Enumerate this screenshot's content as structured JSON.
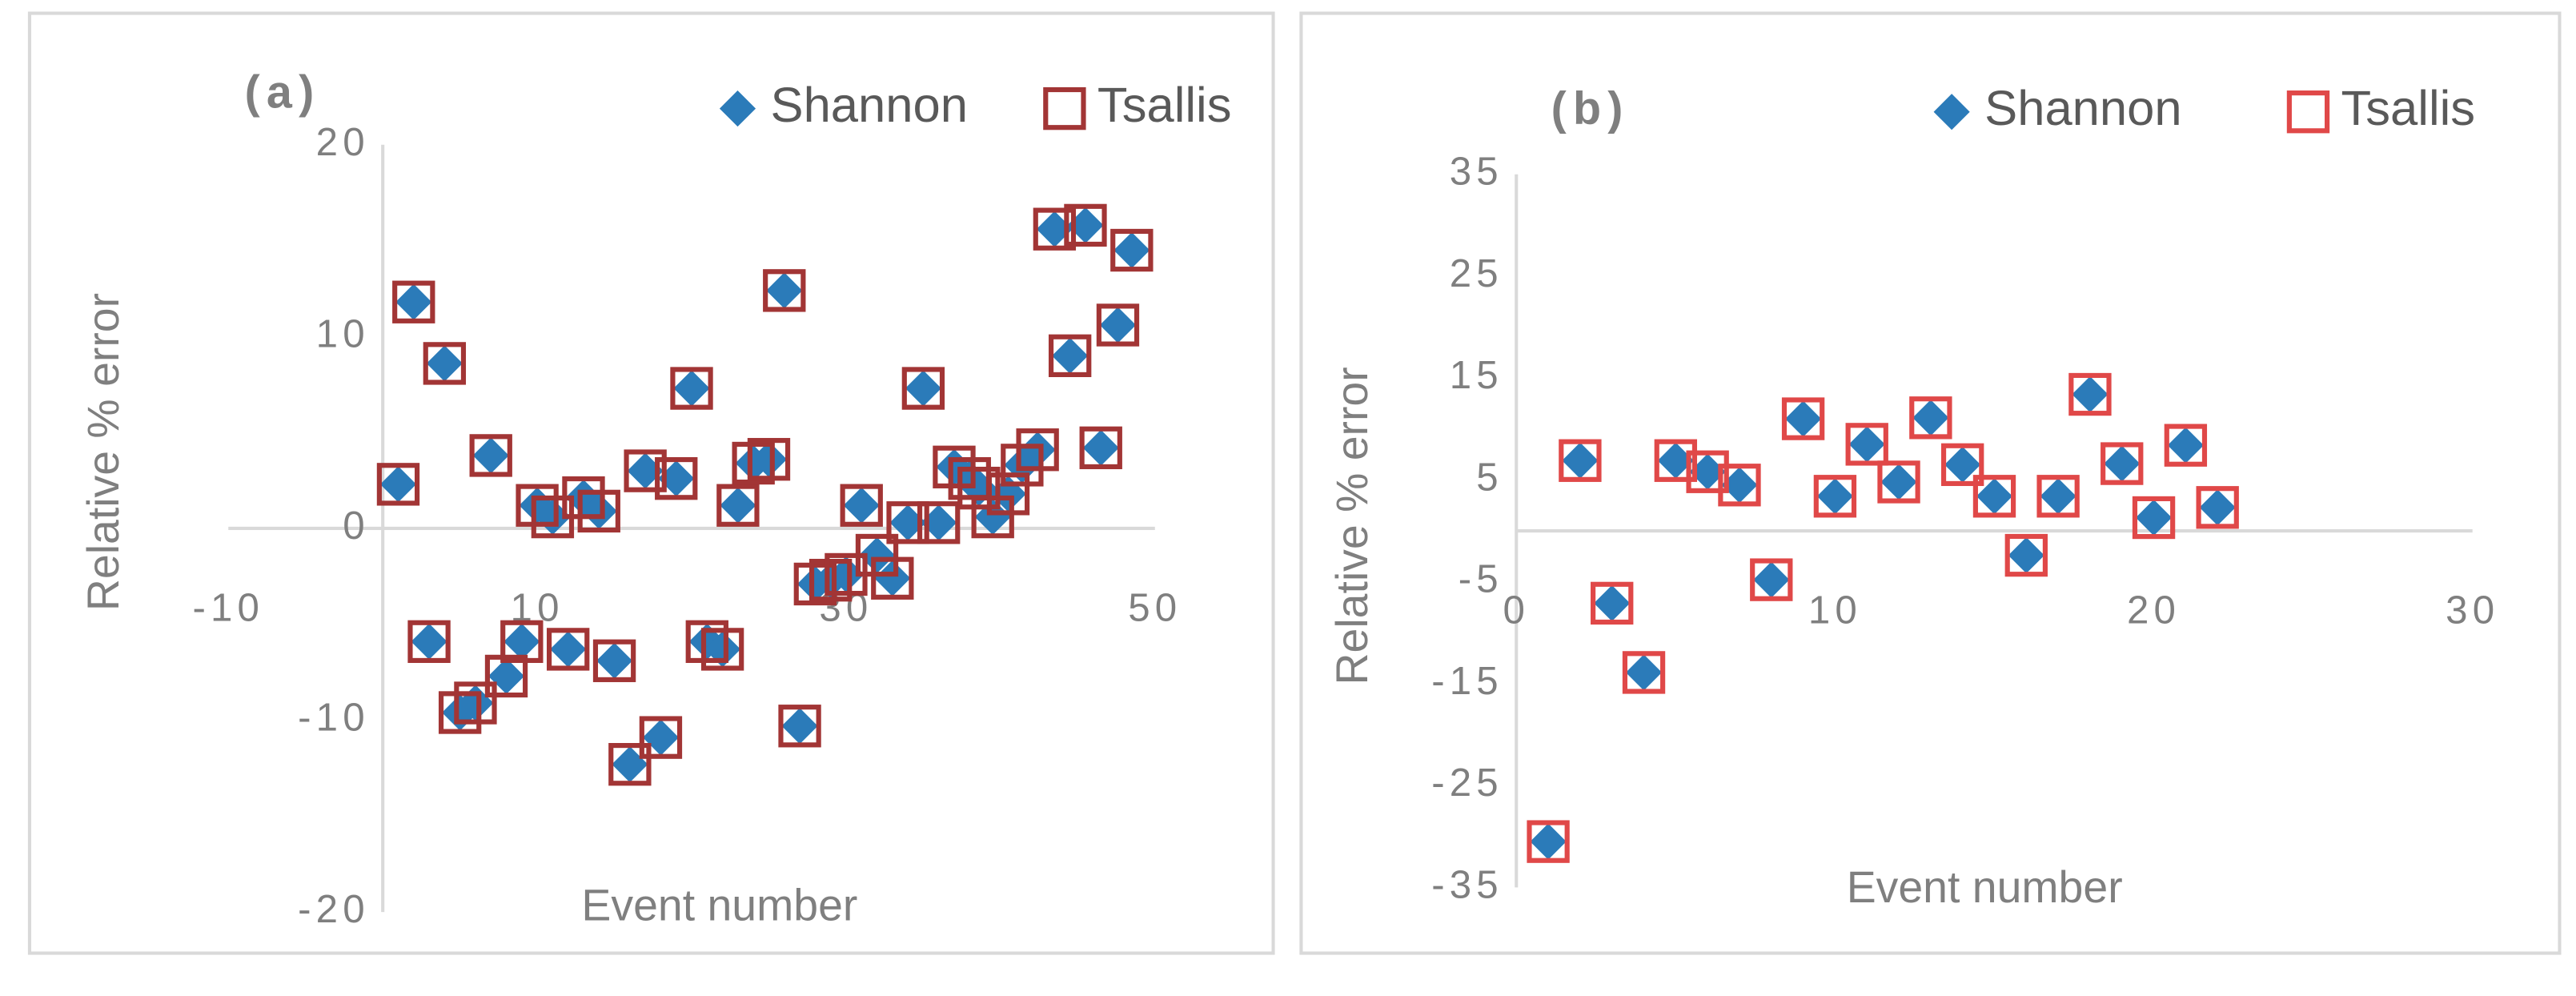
{
  "chart_data": [
    {
      "type": "scatter",
      "label": "(a)",
      "x_label": "Event number",
      "y_label": "Relative % error",
      "xlim": [
        -10,
        50
      ],
      "xticks": [
        -10,
        10,
        30,
        50
      ],
      "ylim": [
        -20,
        20
      ],
      "yticks": [
        -20,
        -10,
        0,
        10,
        20
      ],
      "x": [
        1,
        2,
        3,
        4,
        5,
        6,
        7,
        8,
        9,
        10,
        11,
        12,
        13,
        14,
        15,
        16,
        17,
        18,
        19,
        20,
        21,
        22,
        23,
        24,
        25,
        26,
        27,
        28,
        29,
        30,
        31,
        32,
        33,
        34,
        35,
        36,
        37,
        38,
        38.6,
        39.5,
        40.5,
        41.4,
        42.4,
        43.5,
        44.5,
        45.5,
        46.5,
        47.6,
        48.5
      ],
      "series": [
        {
          "name": "Shannon",
          "color": "#2b7bb9",
          "marker": "diamond",
          "values": [
            2.3,
            11.8,
            -5.9,
            8.6,
            -9.6,
            -9.1,
            3.8,
            -7.7,
            -5.9,
            1.2,
            0.6,
            -6.3,
            1.6,
            0.9,
            -6.9,
            -12.3,
            3.0,
            -10.9,
            2.6,
            7.3,
            -5.9,
            -6.3,
            1.2,
            3.4,
            3.6,
            12.4,
            -10.3,
            -2.9,
            -2.7,
            -2.4,
            1.2,
            -1.4,
            -2.6,
            0.3,
            7.3,
            0.3,
            3.2,
            2.6,
            2.1,
            0.6,
            1.8,
            3.3,
            4.1,
            15.6,
            9.0,
            15.8,
            4.2,
            10.6,
            14.5
          ]
        },
        {
          "name": "Tsallis",
          "color": "#a23535",
          "marker": "square-open",
          "values": [
            2.3,
            11.8,
            -5.9,
            8.6,
            -9.6,
            -9.1,
            3.8,
            -7.7,
            -5.9,
            1.2,
            0.6,
            -6.3,
            1.6,
            0.9,
            -6.9,
            -12.3,
            3.0,
            -10.9,
            2.6,
            7.3,
            -5.9,
            -6.3,
            1.2,
            3.4,
            3.6,
            12.4,
            -10.3,
            -2.9,
            -2.7,
            -2.4,
            1.2,
            -1.4,
            -2.6,
            0.3,
            7.3,
            0.3,
            3.2,
            2.6,
            2.1,
            0.6,
            1.8,
            3.3,
            4.1,
            15.6,
            9.0,
            15.8,
            4.2,
            10.6,
            14.5
          ]
        }
      ]
    },
    {
      "type": "scatter",
      "label": "(b)",
      "x_label": "Event number",
      "y_label": "Relative % error",
      "xlim": [
        0,
        30
      ],
      "xticks": [
        0,
        10,
        20,
        30
      ],
      "ylim": [
        -35,
        35
      ],
      "yticks": [
        -35,
        -25,
        -15,
        -5,
        5,
        15,
        25,
        35
      ],
      "x": [
        1,
        2,
        3,
        4,
        5,
        6,
        7,
        8,
        9,
        10,
        11,
        12,
        13,
        14,
        15,
        16,
        17,
        18,
        19,
        20,
        21,
        22
      ],
      "series": [
        {
          "name": "Shannon",
          "color": "#2b7bb9",
          "marker": "diamond",
          "values": [
            -30.5,
            6.9,
            -7.1,
            -13.9,
            6.9,
            5.8,
            4.5,
            -4.8,
            11.0,
            3.4,
            8.5,
            4.8,
            11.1,
            6.5,
            3.4,
            -2.4,
            3.4,
            13.4,
            6.6,
            1.3,
            8.4,
            2.3
          ]
        },
        {
          "name": "Tsallis",
          "color": "#e04848",
          "marker": "square-open",
          "values": [
            -30.5,
            6.9,
            -7.1,
            -13.9,
            6.9,
            5.8,
            4.5,
            -4.8,
            11.0,
            3.4,
            8.5,
            4.8,
            11.1,
            6.5,
            3.4,
            -2.4,
            3.4,
            13.4,
            6.6,
            1.3,
            8.4,
            2.3
          ]
        }
      ]
    }
  ]
}
